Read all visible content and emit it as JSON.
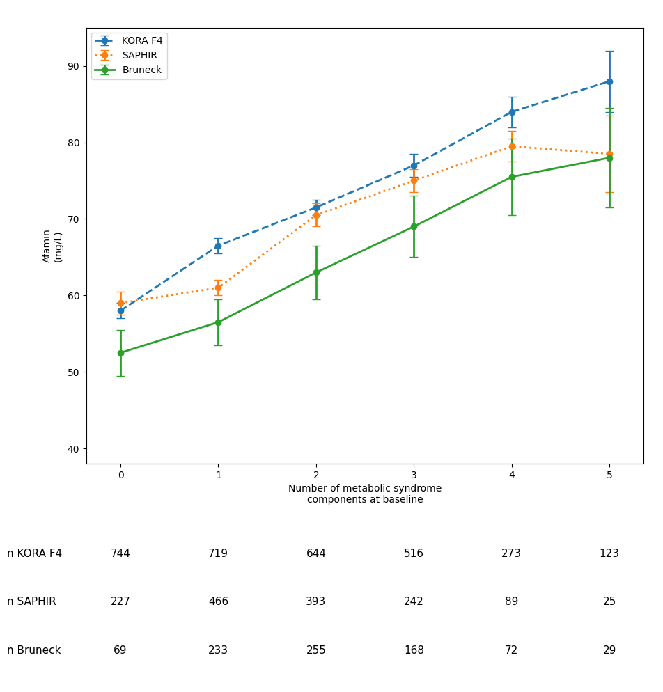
{
  "chart_data": {
    "type": "line",
    "x": [
      0,
      1,
      2,
      3,
      4,
      5
    ],
    "xlabel": "Number of metabolic syndrome\ncomponents at baseline",
    "ylabel": "Afamin\n(mg/L)",
    "xlim": [
      -0.35,
      5.35
    ],
    "xticks": [
      0,
      1,
      2,
      3,
      4,
      5
    ],
    "ylim": [
      38,
      95
    ],
    "yticks": [
      40,
      50,
      60,
      70,
      80,
      90
    ],
    "legend": "upper left",
    "marker": "o",
    "series": [
      {
        "name": "KORA F4",
        "line_style": "dashed",
        "values": [
          58.0,
          66.5,
          71.5,
          77.0,
          84.0,
          88.0
        ],
        "ci_low": [
          57.0,
          65.5,
          70.5,
          75.5,
          82.0,
          84.0
        ],
        "ci_high": [
          59.0,
          67.5,
          72.5,
          78.5,
          86.0,
          92.0
        ]
      },
      {
        "name": "SAPHIR",
        "line_style": "dotted",
        "values": [
          59.0,
          61.0,
          70.5,
          75.0,
          79.5,
          78.5
        ],
        "ci_low": [
          57.5,
          60.0,
          69.0,
          73.5,
          77.5,
          73.5
        ],
        "ci_high": [
          60.5,
          62.0,
          72.0,
          76.5,
          81.5,
          83.5
        ]
      },
      {
        "name": "Bruneck",
        "line_style": "solid",
        "values": [
          52.5,
          56.5,
          63.0,
          69.0,
          75.5,
          78.0
        ],
        "ci_low": [
          49.5,
          53.5,
          59.5,
          65.0,
          70.5,
          71.5
        ],
        "ci_high": [
          55.5,
          59.5,
          66.5,
          73.0,
          80.5,
          84.5
        ]
      }
    ],
    "table": {
      "row_labels": [
        "n KORA F4",
        "n SAPHIR",
        "n Bruneck"
      ],
      "rows": [
        [
          744,
          719,
          644,
          516,
          273,
          123
        ],
        [
          227,
          466,
          393,
          242,
          89,
          25
        ],
        [
          69,
          233,
          255,
          168,
          72,
          29
        ]
      ]
    }
  }
}
